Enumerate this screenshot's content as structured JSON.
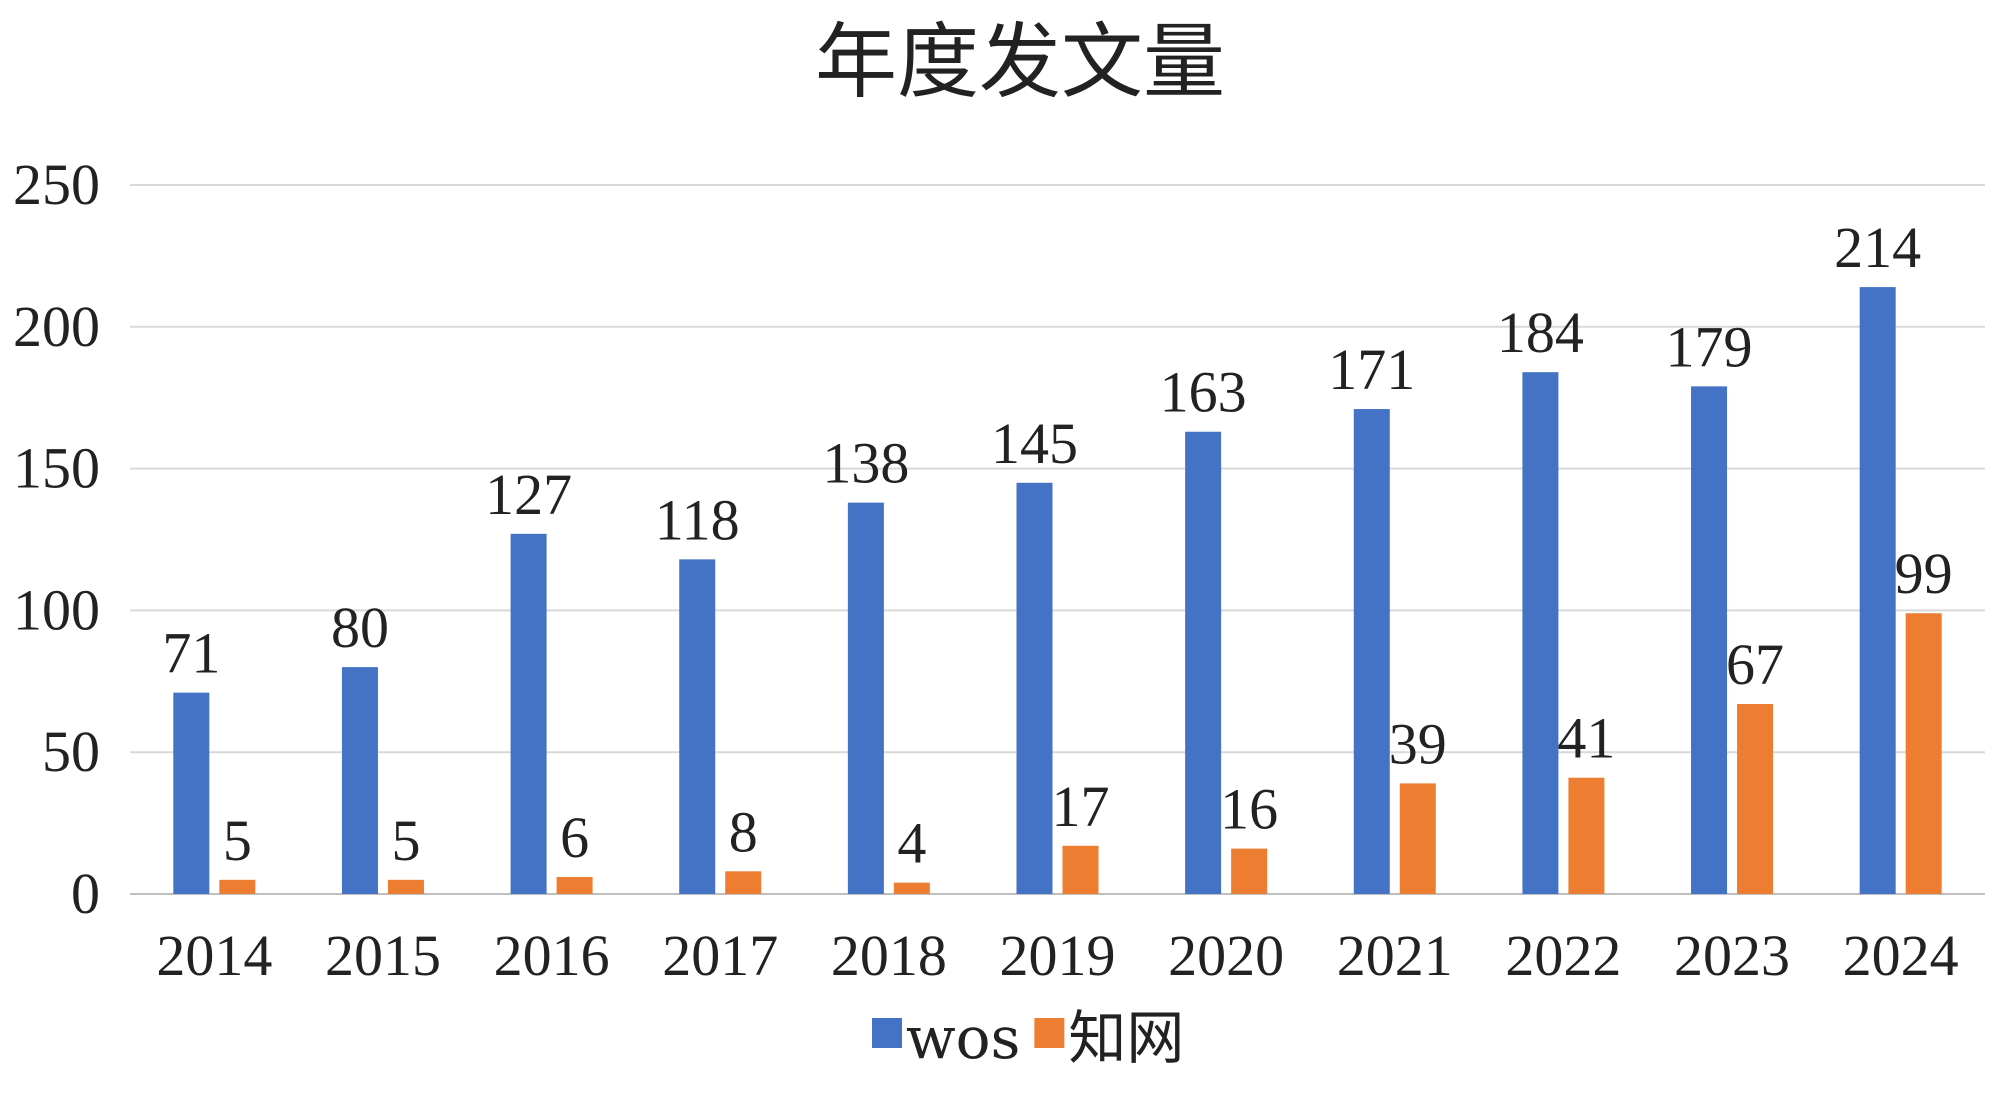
{
  "chart_data": {
    "type": "bar",
    "title": "年度发文量",
    "xlabel": "",
    "ylabel": "",
    "categories": [
      "2014",
      "2015",
      "2016",
      "2017",
      "2018",
      "2019",
      "2020",
      "2021",
      "2022",
      "2023",
      "2024"
    ],
    "series": [
      {
        "name": "wos",
        "color": "#4472C4",
        "values": [
          71,
          80,
          127,
          118,
          138,
          145,
          163,
          171,
          184,
          179,
          214
        ]
      },
      {
        "name": "知网",
        "color": "#ED7D31",
        "values": [
          5,
          5,
          6,
          8,
          4,
          17,
          16,
          39,
          41,
          67,
          99
        ]
      }
    ],
    "yticks": [
      "0",
      "50",
      "100",
      "150",
      "200",
      "250"
    ],
    "ylim": [
      0,
      250
    ],
    "grid": true,
    "legend": "bottom-center",
    "data_labels": true
  }
}
